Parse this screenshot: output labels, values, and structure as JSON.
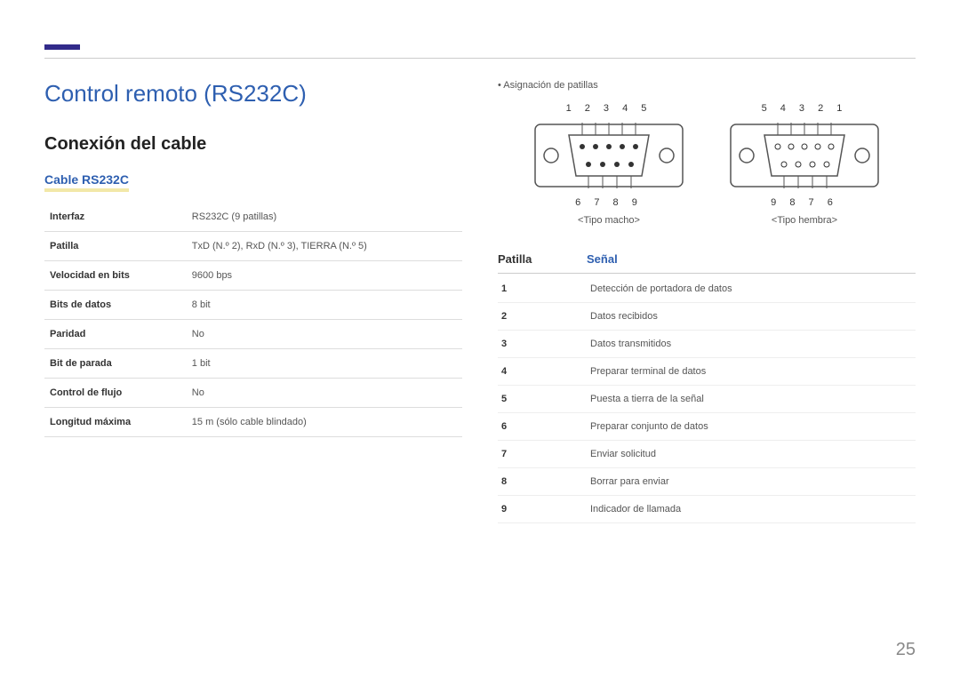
{
  "page_number": "25",
  "title": "Control remoto (RS232C)",
  "subtitle": "Conexión del cable",
  "section_heading": "Cable RS232C",
  "spec_table": {
    "rows": [
      {
        "label": "Interfaz",
        "value": "RS232C (9 patillas)"
      },
      {
        "label": "Patilla",
        "value": "TxD (N.º 2), RxD (N.º 3), TIERRA (N.º 5)"
      },
      {
        "label": "Velocidad en bits",
        "value": "9600 bps"
      },
      {
        "label": "Bits de datos",
        "value": "8 bit"
      },
      {
        "label": "Paridad",
        "value": "No"
      },
      {
        "label": "Bit de parada",
        "value": "1 bit"
      },
      {
        "label": "Control de flujo",
        "value": "No"
      },
      {
        "label": "Longitud máxima",
        "value": "15 m (sólo cable blindado)"
      }
    ]
  },
  "right": {
    "bullet": "•  Asignación de patillas",
    "connectors": {
      "male": {
        "top_pins": "1 2 3 4 5",
        "bottom_pins": "6 7 8 9",
        "caption": "<Tipo macho>"
      },
      "female": {
        "top_pins": "5 4 3 2 1",
        "bottom_pins": "9 8 7 6",
        "caption": "<Tipo hembra>"
      }
    },
    "pin_header": {
      "col1": "Patilla",
      "col2": "Señal"
    },
    "pin_rows": [
      {
        "pin": "1",
        "signal": "Detección de portadora de datos"
      },
      {
        "pin": "2",
        "signal": "Datos recibidos"
      },
      {
        "pin": "3",
        "signal": "Datos transmitidos"
      },
      {
        "pin": "4",
        "signal": "Preparar terminal de datos"
      },
      {
        "pin": "5",
        "signal": "Puesta a tierra de la señal"
      },
      {
        "pin": "6",
        "signal": "Preparar conjunto de datos"
      },
      {
        "pin": "7",
        "signal": "Enviar solicitud"
      },
      {
        "pin": "8",
        "signal": "Borrar para enviar"
      },
      {
        "pin": "9",
        "signal": "Indicador de llamada"
      }
    ]
  },
  "colors": {
    "title_color": "#2e5fb0",
    "accent_bar": "#322b8a",
    "highlight_underline": "#f2e8a8",
    "border_gray": "#ddd"
  }
}
